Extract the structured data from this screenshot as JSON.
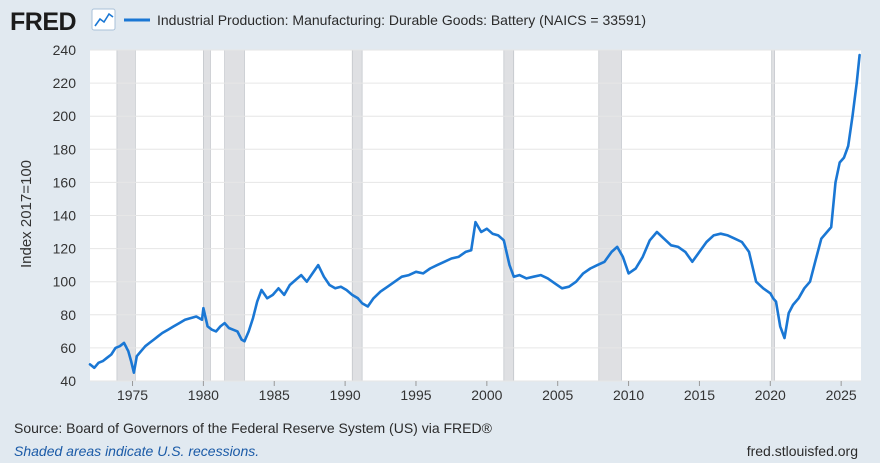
{
  "header": {
    "logo_text": "FRED",
    "logo_icon": "line-chart-icon",
    "legend_label": "Industrial Production: Manufacturing: Durable Goods: Battery (NAICS = 33591)"
  },
  "footer": {
    "source": "Source: Board of Governors of the Federal Reserve System (US) via FRED®",
    "recession_note": "Shaded areas indicate U.S. recessions.",
    "site": "fred.stlouisfed.org"
  },
  "colors": {
    "background": "#e1e9f0",
    "plot_background": "#ffffff",
    "series": "#1a77d4",
    "recession": "#dfe0e3",
    "grid": "#e6e6e6",
    "text": "#333333",
    "note": "#1a5aa7"
  },
  "chart_data": {
    "type": "line",
    "title": "",
    "xlabel": "",
    "ylabel": "Index 2017=100",
    "xlim": [
      1972.0,
      2026.4
    ],
    "ylim": [
      40,
      240
    ],
    "xticks": [
      "1975",
      "1980",
      "1985",
      "1990",
      "1995",
      "2000",
      "2005",
      "2010",
      "2015",
      "2020",
      "2025"
    ],
    "yticks": [
      "40",
      "60",
      "80",
      "100",
      "120",
      "140",
      "160",
      "180",
      "200",
      "220",
      "240"
    ],
    "grid": "horizontal",
    "legend": "top-left",
    "recessions": [
      [
        1973.9,
        1975.2
      ],
      [
        1980.0,
        1980.5
      ],
      [
        1981.5,
        1982.9
      ],
      [
        1990.5,
        1991.2
      ],
      [
        2001.2,
        2001.9
      ],
      [
        2007.9,
        2009.5
      ],
      [
        2020.1,
        2020.3
      ]
    ],
    "series": [
      {
        "name": "Industrial Production: Manufacturing: Durable Goods: Battery (NAICS = 33591)",
        "x": [
          1972.0,
          1972.3,
          1972.6,
          1972.9,
          1973.2,
          1973.5,
          1973.8,
          1974.1,
          1974.4,
          1974.7,
          1974.9,
          1975.1,
          1975.3,
          1975.6,
          1975.9,
          1976.2,
          1976.5,
          1976.8,
          1977.1,
          1977.5,
          1977.9,
          1978.3,
          1978.7,
          1979.1,
          1979.5,
          1979.9,
          1980.0,
          1980.3,
          1980.6,
          1980.9,
          1981.2,
          1981.5,
          1981.8,
          1982.1,
          1982.4,
          1982.7,
          1982.9,
          1983.2,
          1983.5,
          1983.8,
          1984.1,
          1984.5,
          1984.9,
          1985.3,
          1985.7,
          1986.1,
          1986.5,
          1986.9,
          1987.3,
          1987.7,
          1988.1,
          1988.5,
          1988.9,
          1989.3,
          1989.7,
          1990.1,
          1990.5,
          1990.9,
          1991.2,
          1991.6,
          1992.0,
          1992.5,
          1993.0,
          1993.5,
          1994.0,
          1994.5,
          1995.0,
          1995.5,
          1996.0,
          1996.5,
          1997.0,
          1997.5,
          1998.0,
          1998.5,
          1998.9,
          1999.2,
          1999.6,
          2000.0,
          2000.4,
          2000.8,
          2001.2,
          2001.6,
          2001.9,
          2002.3,
          2002.8,
          2003.3,
          2003.8,
          2004.3,
          2004.8,
          2005.3,
          2005.8,
          2006.3,
          2006.8,
          2007.3,
          2007.8,
          2008.3,
          2008.8,
          2009.2,
          2009.6,
          2010.0,
          2010.5,
          2011.0,
          2011.5,
          2012.0,
          2012.5,
          2013.0,
          2013.5,
          2014.0,
          2014.5,
          2015.0,
          2015.5,
          2016.0,
          2016.5,
          2017.0,
          2017.5,
          2018.0,
          2018.5,
          2019.0,
          2019.5,
          2020.0,
          2020.2,
          2020.4,
          2020.7,
          2021.0,
          2021.3,
          2021.6,
          2022.0,
          2022.4,
          2022.8,
          2023.2,
          2023.6,
          2024.0,
          2024.3,
          2024.6,
          2024.9,
          2025.2,
          2025.5,
          2025.8,
          2026.1,
          2026.3
        ],
        "y": [
          50,
          48,
          51,
          52,
          54,
          56,
          60,
          61,
          63,
          58,
          52,
          45,
          55,
          58,
          61,
          63,
          65,
          67,
          69,
          71,
          73,
          75,
          77,
          78,
          79,
          77,
          84,
          73,
          71,
          70,
          73,
          75,
          72,
          71,
          70,
          65,
          64,
          70,
          78,
          88,
          95,
          90,
          92,
          96,
          92,
          98,
          101,
          104,
          100,
          105,
          110,
          103,
          98,
          96,
          97,
          95,
          92,
          90,
          87,
          85,
          90,
          94,
          97,
          100,
          103,
          104,
          106,
          105,
          108,
          110,
          112,
          114,
          115,
          118,
          119,
          136,
          130,
          132,
          129,
          128,
          125,
          110,
          103,
          104,
          102,
          103,
          104,
          102,
          99,
          96,
          97,
          100,
          105,
          108,
          110,
          112,
          118,
          121,
          115,
          105,
          108,
          115,
          125,
          130,
          126,
          122,
          121,
          118,
          112,
          118,
          124,
          128,
          129,
          128,
          126,
          124,
          118,
          100,
          96,
          93,
          90,
          88,
          73,
          66,
          81,
          86,
          90,
          96,
          100,
          113,
          126,
          130,
          133,
          160,
          172,
          175,
          182,
          200,
          220,
          237
        ]
      }
    ]
  }
}
